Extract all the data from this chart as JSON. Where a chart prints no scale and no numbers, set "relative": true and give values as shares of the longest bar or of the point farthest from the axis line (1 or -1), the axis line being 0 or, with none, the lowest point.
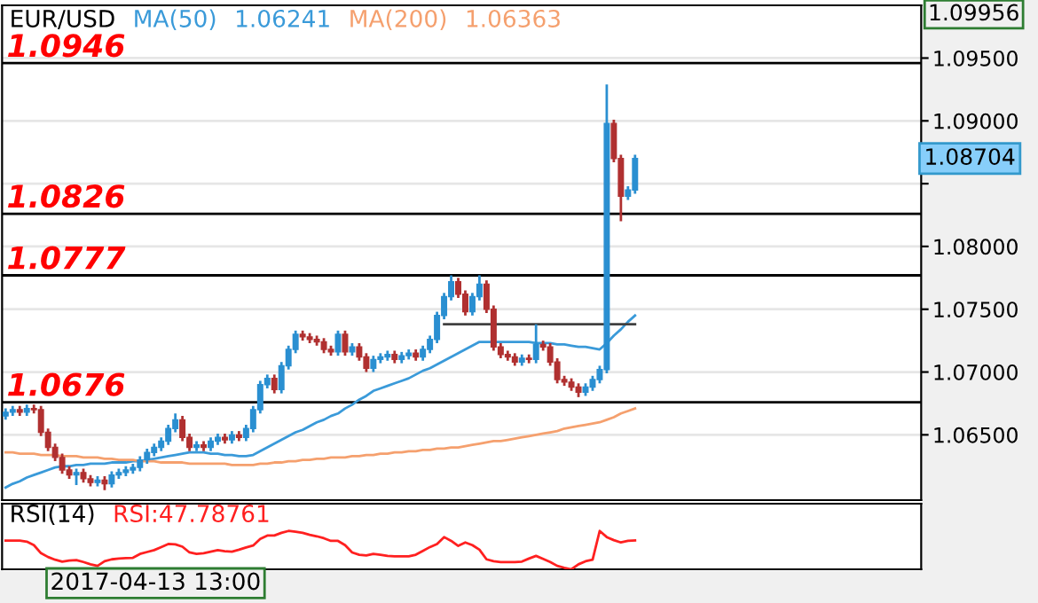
{
  "chart_data": [
    {
      "type": "candlestick",
      "title": "EUR/USD",
      "colors": [
        "#2a8fd1",
        "#2a8fd1",
        "#b03030",
        "#2a8fd1",
        "#b03030",
        "#b03030",
        "#b03030",
        "#b03030",
        "#b03030",
        "#b03030",
        "#2a8fd1",
        "#b03030",
        "#b03030",
        "#2a8fd1",
        "#b03030",
        "#2a8fd1",
        "#2a8fd1",
        "#2a8fd1",
        "#2a8fd1",
        "#2a8fd1",
        "#2a8fd1",
        "#2a8fd1",
        "#2a8fd1",
        "#2a8fd1",
        "#2a8fd1",
        "#b03030",
        "#b03030",
        "#2a8fd1",
        "#b03030",
        "#2a8fd1",
        "#2a8fd1",
        "#b03030",
        "#2a8fd1",
        "#b03030",
        "#2a8fd1",
        "#2a8fd1",
        "#2a8fd1",
        "#2a8fd1",
        "#b03030",
        "#2a8fd1",
        "#2a8fd1",
        "#2a8fd1",
        "#b03030",
        "#b03030",
        "#b03030",
        "#b03030",
        "#b03030",
        "#2a8fd1",
        "#b03030",
        "#2a8fd1",
        "#b03030",
        "#b03030",
        "#2a8fd1",
        "#2a8fd1",
        "#2a8fd1",
        "#b03030",
        "#2a8fd1",
        "#2a8fd1",
        "#b03030",
        "#2a8fd1",
        "#2a8fd1",
        "#2a8fd1",
        "#2a8fd1",
        "#2a8fd1",
        "#b03030",
        "#b03030",
        "#2a8fd1",
        "#2a8fd1",
        "#b03030",
        "#b03030",
        "#b03030",
        "#b03030",
        "#b03030",
        "#2a8fd1",
        "#b03030",
        "#2a8fd1",
        "#b03030",
        "#b03030",
        "#b03030",
        "#b03030",
        "#b03030",
        "#b03030",
        "#2a8fd1",
        "#2a8fd1",
        "#2a8fd1",
        "#2a8fd1",
        "#b03030",
        "#b03030",
        "#2a8fd1",
        "#2a8fd1"
      ],
      "categories": [
        null,
        null,
        null,
        null,
        null,
        null,
        null,
        null,
        null,
        null,
        null,
        null,
        null,
        null,
        null,
        null,
        null,
        null,
        null,
        null,
        null,
        null,
        null,
        null,
        null,
        null,
        null,
        null,
        null,
        null,
        null,
        null,
        null,
        null,
        null,
        null,
        null,
        null,
        null,
        null,
        null,
        null,
        null,
        null,
        null,
        null,
        null,
        null,
        null,
        null,
        null,
        null,
        null,
        null,
        null,
        null,
        null,
        null,
        null,
        null,
        null,
        null,
        null,
        null,
        null,
        null,
        null,
        null,
        null,
        null,
        null,
        null,
        null,
        null,
        null,
        null,
        null,
        null,
        null,
        null,
        null,
        null,
        null,
        null,
        null,
        null,
        null,
        null,
        null,
        null
      ],
      "ohlc": [
        [
          1.0665,
          1.0671,
          1.0662,
          1.0668
        ],
        [
          1.0668,
          1.0673,
          1.0665,
          1.067
        ],
        [
          1.067,
          1.0673,
          1.0665,
          1.0668
        ],
        [
          1.0668,
          1.0674,
          1.0665,
          1.0671
        ],
        [
          1.0671,
          1.0674,
          1.0667,
          1.067
        ],
        [
          1.067,
          1.0673,
          1.0649,
          1.0652
        ],
        [
          1.0652,
          1.0655,
          1.0637,
          1.064
        ],
        [
          1.064,
          1.0643,
          1.0629,
          1.0632
        ],
        [
          1.0632,
          1.0635,
          1.0619,
          1.0622
        ],
        [
          1.0622,
          1.0625,
          1.0615,
          1.0618
        ],
        [
          1.0618,
          1.0623,
          1.061,
          1.062
        ],
        [
          1.062,
          1.0623,
          1.0612,
          1.0615
        ],
        [
          1.0615,
          1.0618,
          1.0609,
          1.0612
        ],
        [
          1.0612,
          1.0617,
          1.0609,
          1.0614
        ],
        [
          1.0614,
          1.0617,
          1.0606,
          1.0611
        ],
        [
          1.0611,
          1.0621,
          1.0608,
          1.0618
        ],
        [
          1.0618,
          1.0623,
          1.0615,
          1.062
        ],
        [
          1.062,
          1.0625,
          1.0617,
          1.0622
        ],
        [
          1.0622,
          1.0627,
          1.0619,
          1.0624
        ],
        [
          1.0624,
          1.0633,
          1.0621,
          1.063
        ],
        [
          1.063,
          1.0639,
          1.0627,
          1.0636
        ],
        [
          1.0636,
          1.0643,
          1.0633,
          1.064
        ],
        [
          1.064,
          1.0648,
          1.0637,
          1.0645
        ],
        [
          1.0645,
          1.0658,
          1.0642,
          1.0655
        ],
        [
          1.0655,
          1.0667,
          1.0652,
          1.0662
        ],
        [
          1.0662,
          1.0665,
          1.0645,
          1.0648
        ],
        [
          1.0648,
          1.0651,
          1.0637,
          1.064
        ],
        [
          1.064,
          1.0645,
          1.0637,
          1.0642
        ],
        [
          1.0642,
          1.0645,
          1.0637,
          1.064
        ],
        [
          1.064,
          1.0648,
          1.0637,
          1.0645
        ],
        [
          1.0645,
          1.0651,
          1.0642,
          1.0648
        ],
        [
          1.0648,
          1.0651,
          1.0643,
          1.0646
        ],
        [
          1.0646,
          1.0653,
          1.0643,
          1.065
        ],
        [
          1.065,
          1.0653,
          1.0645,
          1.0648
        ],
        [
          1.0648,
          1.0658,
          1.0645,
          1.0655
        ],
        [
          1.0655,
          1.0673,
          1.0652,
          1.067
        ],
        [
          1.067,
          1.0693,
          1.0667,
          1.069
        ],
        [
          1.069,
          1.0698,
          1.0687,
          1.0695
        ],
        [
          1.0695,
          1.0698,
          1.0683,
          1.0686
        ],
        [
          1.0686,
          1.0708,
          1.0683,
          1.0705
        ],
        [
          1.0705,
          1.0721,
          1.0702,
          1.0718
        ],
        [
          1.0718,
          1.0733,
          1.0715,
          1.073
        ],
        [
          1.073,
          1.0733,
          1.0725,
          1.0728
        ],
        [
          1.0728,
          1.0731,
          1.0723,
          1.0726
        ],
        [
          1.0726,
          1.0729,
          1.0721,
          1.0724
        ],
        [
          1.0724,
          1.0727,
          1.0715,
          1.0718
        ],
        [
          1.0718,
          1.0721,
          1.0713,
          1.0716
        ],
        [
          1.0716,
          1.0733,
          1.0713,
          1.073
        ],
        [
          1.073,
          1.0733,
          1.0713,
          1.0716
        ],
        [
          1.0716,
          1.0723,
          1.0713,
          1.072
        ],
        [
          1.072,
          1.0723,
          1.0709,
          1.0712
        ],
        [
          1.0712,
          1.0715,
          1.07,
          1.0703
        ],
        [
          1.0703,
          1.0713,
          1.07,
          1.071
        ],
        [
          1.071,
          1.0715,
          1.0707,
          1.0712
        ],
        [
          1.0712,
          1.0717,
          1.0709,
          1.0714
        ],
        [
          1.0714,
          1.0717,
          1.0707,
          1.071
        ],
        [
          1.071,
          1.0716,
          1.0707,
          1.0713
        ],
        [
          1.0713,
          1.0718,
          1.071,
          1.0715
        ],
        [
          1.0715,
          1.0718,
          1.0709,
          1.0712
        ],
        [
          1.0712,
          1.0721,
          1.0709,
          1.0718
        ],
        [
          1.0718,
          1.0729,
          1.0715,
          1.0726
        ],
        [
          1.0726,
          1.0748,
          1.0723,
          1.0745
        ],
        [
          1.0745,
          1.0763,
          1.0742,
          1.076
        ],
        [
          1.076,
          1.0777,
          1.0757,
          1.0772
        ],
        [
          1.0772,
          1.0775,
          1.0759,
          1.0762
        ],
        [
          1.0762,
          1.0765,
          1.0745,
          1.0748
        ],
        [
          1.0748,
          1.0763,
          1.0745,
          1.076
        ],
        [
          1.076,
          1.0777,
          1.0757,
          1.077
        ],
        [
          1.077,
          1.0773,
          1.0747,
          1.075
        ],
        [
          1.075,
          1.0753,
          1.0717,
          1.072
        ],
        [
          1.072,
          1.0723,
          1.0711,
          1.0714
        ],
        [
          1.0714,
          1.0717,
          1.0709,
          1.0712
        ],
        [
          1.0712,
          1.0715,
          1.0705,
          1.0708
        ],
        [
          1.0708,
          1.0714,
          1.0705,
          1.0711
        ],
        [
          1.0711,
          1.0714,
          1.0707,
          1.071
        ],
        [
          1.071,
          1.0738,
          1.0707,
          1.0722
        ],
        [
          1.0722,
          1.0725,
          1.0717,
          1.072
        ],
        [
          1.072,
          1.0723,
          1.0705,
          1.0708
        ],
        [
          1.0708,
          1.0711,
          1.0691,
          1.0694
        ],
        [
          1.0694,
          1.0697,
          1.0689,
          1.0692
        ],
        [
          1.0692,
          1.0695,
          1.0685,
          1.0688
        ],
        [
          1.0688,
          1.0691,
          1.068,
          1.0684
        ],
        [
          1.0684,
          1.0691,
          1.0681,
          1.0688
        ],
        [
          1.0688,
          1.0697,
          1.0685,
          1.0694
        ],
        [
          1.0694,
          1.0705,
          1.0691,
          1.0702
        ],
        [
          1.0702,
          1.0929,
          1.0699,
          1.0898
        ],
        [
          1.0898,
          1.0901,
          1.0867,
          1.087
        ],
        [
          1.087,
          1.0873,
          1.082,
          1.084
        ],
        [
          1.084,
          1.0848,
          1.0837,
          1.0845
        ],
        [
          1.0845,
          1.0873,
          1.0842,
          1.087
        ]
      ],
      "series": [
        {
          "type": "line",
          "name": "MA(50)",
          "color": "#3a9ad9",
          "values": [
            1.0608,
            1.0611,
            1.0613,
            1.0616,
            1.0618,
            1.062,
            1.0622,
            1.0624,
            1.0625,
            1.0625,
            1.0626,
            1.0626,
            1.0627,
            1.0627,
            1.0627,
            1.0628,
            1.0628,
            1.0628,
            1.0629,
            1.0629,
            1.063,
            1.0631,
            1.0632,
            1.0633,
            1.0634,
            1.0635,
            1.0636,
            1.0636,
            1.0636,
            1.0635,
            1.0635,
            1.0634,
            1.0634,
            1.0633,
            1.0633,
            1.0634,
            1.0637,
            1.064,
            1.0643,
            1.0646,
            1.0649,
            1.0652,
            1.0654,
            1.0657,
            1.066,
            1.0662,
            1.0665,
            1.0667,
            1.0671,
            1.0674,
            1.0678,
            1.0681,
            1.0685,
            1.0687,
            1.0689,
            1.0691,
            1.0693,
            1.0695,
            1.0698,
            1.0701,
            1.0703,
            1.0706,
            1.0709,
            1.0712,
            1.0715,
            1.0718,
            1.0721,
            1.0724,
            1.0724,
            1.0724,
            1.0724,
            1.0724,
            1.0724,
            1.0724,
            1.0724,
            1.0723,
            1.0723,
            1.0723,
            1.0722,
            1.0722,
            1.0721,
            1.072,
            1.072,
            1.0719,
            1.0718,
            1.0723,
            1.0729,
            1.0734,
            1.074,
            1.0745
          ]
        },
        {
          "type": "line",
          "name": "MA(200)",
          "color": "#f5a06e",
          "values": [
            1.0636,
            1.0636,
            1.0635,
            1.0635,
            1.0635,
            1.0634,
            1.0634,
            1.0634,
            1.0633,
            1.0633,
            1.0633,
            1.0632,
            1.0632,
            1.0632,
            1.0631,
            1.0631,
            1.063,
            1.063,
            1.063,
            1.0629,
            1.0629,
            1.0629,
            1.0628,
            1.0628,
            1.0628,
            1.0628,
            1.0627,
            1.0627,
            1.0627,
            1.0627,
            1.0627,
            1.0627,
            1.0626,
            1.0626,
            1.0626,
            1.0626,
            1.0627,
            1.0627,
            1.0628,
            1.0628,
            1.0629,
            1.0629,
            1.063,
            1.063,
            1.0631,
            1.0631,
            1.0632,
            1.0632,
            1.0632,
            1.0633,
            1.0633,
            1.0634,
            1.0634,
            1.0635,
            1.0635,
            1.0636,
            1.0636,
            1.0637,
            1.0637,
            1.0638,
            1.0638,
            1.0639,
            1.0639,
            1.064,
            1.064,
            1.0641,
            1.0642,
            1.0643,
            1.0644,
            1.0645,
            1.0645,
            1.0646,
            1.0647,
            1.0648,
            1.0649,
            1.065,
            1.0651,
            1.0652,
            1.0653,
            1.0655,
            1.0656,
            1.0657,
            1.0658,
            1.0659,
            1.066,
            1.0662,
            1.0664,
            1.0667,
            1.0669,
            1.0671
          ]
        },
        {
          "type": "line",
          "color": "#404040",
          "values": [
            null,
            null,
            null,
            null,
            null,
            null,
            null,
            null,
            null,
            null,
            null,
            null,
            null,
            null,
            null,
            null,
            null,
            null,
            null,
            null,
            null,
            null,
            null,
            null,
            null,
            null,
            null,
            null,
            null,
            null,
            null,
            null,
            null,
            null,
            null,
            null,
            null,
            null,
            null,
            null,
            null,
            null,
            null,
            null,
            null,
            null,
            null,
            null,
            null,
            null,
            null,
            null,
            null,
            null,
            null,
            null,
            null,
            null,
            null,
            null,
            null,
            null,
            1.0738,
            1.0738,
            1.0738,
            1.0738,
            1.0738,
            1.0738,
            1.0738,
            1.0738,
            1.0738,
            1.0738,
            1.0738,
            1.0738,
            1.0738,
            1.0738,
            1.0738,
            1.0738,
            1.0738,
            1.0738,
            1.0738,
            1.0738,
            1.0738,
            1.0738,
            1.0738,
            1.0738,
            1.0738,
            1.0738,
            1.0738,
            1.0738
          ]
        }
      ],
      "ylim": [
        1.0598,
        1.0992
      ],
      "yticks": [
        {
          "value": 1.065,
          "label": "1.06500"
        },
        {
          "value": 1.07,
          "label": "1.07000"
        },
        {
          "value": 1.075,
          "label": "1.07500"
        },
        {
          "value": 1.08,
          "label": "1.08000"
        },
        {
          "value": 1.085,
          "label": null
        },
        {
          "value": 1.09,
          "label": "1.09000"
        },
        {
          "value": 1.095,
          "label": "1.09500"
        }
      ],
      "tick_labels": "y",
      "grid": "y",
      "ref_lines": [
        {
          "axis": "y",
          "value": 1.0946,
          "label": "1.0946",
          "color": "#000000"
        },
        {
          "axis": "y",
          "value": 1.0826,
          "label": "1.0826",
          "color": "#000000"
        },
        {
          "axis": "y",
          "value": 1.0777,
          "label": "1.0777",
          "color": "#000000"
        },
        {
          "axis": "y",
          "value": 1.0676,
          "label": "1.0676",
          "color": "#000000"
        }
      ],
      "annotations": [
        "1.06241",
        "1.06363",
        "1.09956",
        "1.08704"
      ]
    },
    {
      "type": "line",
      "title": "RSI(14)",
      "relative": true,
      "tick_labels": false,
      "categories": [
        null,
        null,
        null,
        null,
        null,
        null,
        null,
        null,
        null,
        null,
        null,
        null,
        null,
        null,
        null,
        null,
        null,
        null,
        null,
        null,
        null,
        null,
        null,
        null,
        null,
        null,
        null,
        null,
        null,
        null,
        null,
        null,
        null,
        null,
        null,
        null,
        null,
        null,
        null,
        null,
        null,
        null,
        null,
        null,
        null,
        null,
        null,
        null,
        null,
        null,
        null,
        null,
        null,
        null,
        null,
        null,
        null,
        null,
        null,
        null,
        null,
        null,
        null,
        null,
        null,
        null,
        null,
        null,
        null,
        null,
        null,
        null,
        null,
        null,
        null,
        null,
        null,
        null,
        null,
        null,
        null,
        null,
        null,
        null,
        null,
        null,
        null,
        null,
        null,
        null
      ],
      "series": [
        {
          "color": "#ff2020",
          "values": [
            0.75,
            0.75,
            0.75,
            0.72,
            0.63,
            0.42,
            0.32,
            0.25,
            0.2,
            0.23,
            0.24,
            0.19,
            0.13,
            0.09,
            0.21,
            0.26,
            0.28,
            0.29,
            0.3,
            0.4,
            0.45,
            0.5,
            0.58,
            0.66,
            0.65,
            0.59,
            0.44,
            0.4,
            0.42,
            0.46,
            0.5,
            0.47,
            0.46,
            0.51,
            0.57,
            0.62,
            0.79,
            0.88,
            0.88,
            0.95,
            1,
            0.98,
            0.95,
            0.9,
            0.86,
            0.81,
            0.74,
            0.74,
            0.63,
            0.44,
            0.38,
            0.36,
            0.4,
            0.38,
            0.35,
            0.34,
            0.34,
            0.34,
            0.38,
            0.48,
            0.58,
            0.66,
            0.84,
            0.74,
            0.61,
            0.7,
            0.63,
            0.51,
            0.26,
            0.21,
            0.19,
            0.19,
            0.19,
            0.2,
            0.28,
            0.35,
            0.27,
            0.19,
            0.09,
            0.04,
            0,
            0.13,
            0.21,
            0.25,
            1,
            0.84,
            0.76,
            0.7,
            0.74,
            0.75
          ]
        }
      ],
      "annotations": [
        "RSI:47.78761",
        "2017-04-13 13:00"
      ]
    }
  ]
}
